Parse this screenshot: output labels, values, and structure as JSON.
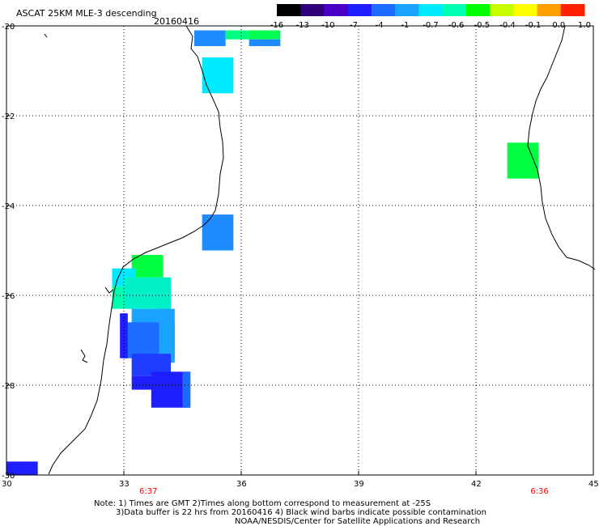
{
  "header": {
    "title": "ASCAT 25KM MLE-3 descending",
    "date": "20160416"
  },
  "colorbar": {
    "labels": [
      "-16",
      "-13",
      "-10",
      "-7",
      "-4",
      "-1",
      "-0.7",
      "-0.6",
      "-0.5",
      "-0.4",
      "-0.1",
      "0.0",
      "1.0"
    ],
    "colors": [
      "#000000",
      "#30007a",
      "#4b00c8",
      "#1e1eff",
      "#1e6bff",
      "#1aa4ff",
      "#00eaff",
      "#00ffb0",
      "#00ff00",
      "#c8ff00",
      "#ffff00",
      "#ffa000",
      "#ff2000"
    ]
  },
  "map": {
    "lon_range": [
      30,
      45
    ],
    "lat_range": [
      -30,
      -20
    ],
    "x_ticks": [
      "30",
      "33",
      "36",
      "39",
      "42",
      "45"
    ],
    "y_ticks": [
      "-20",
      "-22",
      "-24",
      "-26",
      "-28",
      "-30"
    ],
    "pass_times": [
      {
        "lon": 33.6,
        "label": "6:37"
      },
      {
        "lon": 43.6,
        "label": "6:36"
      }
    ],
    "cells": [
      {
        "lon": 34.8,
        "lat": -20.1,
        "w": 0.8,
        "h": 0.35,
        "color": "#1e8bff"
      },
      {
        "lon": 35.6,
        "lat": -20.1,
        "w": 0.6,
        "h": 0.2,
        "color": "#00ff80"
      },
      {
        "lon": 36.2,
        "lat": -20.1,
        "w": 0.8,
        "h": 0.2,
        "color": "#00ff50"
      },
      {
        "lon": 36.2,
        "lat": -20.3,
        "w": 0.8,
        "h": 0.15,
        "color": "#1e8bff"
      },
      {
        "lon": 35.0,
        "lat": -20.7,
        "w": 0.8,
        "h": 0.8,
        "color": "#00eaff"
      },
      {
        "lon": 42.8,
        "lat": -22.6,
        "w": 0.8,
        "h": 0.8,
        "color": "#00ff40"
      },
      {
        "lon": 35.0,
        "lat": -24.2,
        "w": 0.8,
        "h": 0.8,
        "color": "#1e8bff"
      },
      {
        "lon": 33.2,
        "lat": -25.1,
        "w": 0.8,
        "h": 0.5,
        "color": "#00ff40"
      },
      {
        "lon": 32.7,
        "lat": -25.4,
        "w": 0.6,
        "h": 0.4,
        "color": "#00eaff"
      },
      {
        "lon": 33.0,
        "lat": -25.6,
        "w": 1.2,
        "h": 0.7,
        "color": "#00f0c8"
      },
      {
        "lon": 32.7,
        "lat": -25.8,
        "w": 0.3,
        "h": 0.5,
        "color": "#00ffb0"
      },
      {
        "lon": 33.2,
        "lat": -26.3,
        "w": 1.0,
        "h": 0.5,
        "color": "#1aa4ff"
      },
      {
        "lon": 33.0,
        "lat": -26.6,
        "w": 1.3,
        "h": 0.8,
        "color": "#1e6bff"
      },
      {
        "lon": 33.9,
        "lat": -26.3,
        "w": 0.4,
        "h": 1.2,
        "color": "#1aa4ff"
      },
      {
        "lon": 32.9,
        "lat": -26.4,
        "w": 0.2,
        "h": 1.0,
        "color": "#1e1eff"
      },
      {
        "lon": 33.2,
        "lat": -27.3,
        "w": 1.0,
        "h": 0.5,
        "color": "#1e3cff"
      },
      {
        "lon": 33.2,
        "lat": -27.8,
        "w": 0.8,
        "h": 0.3,
        "color": "#1e1eff"
      },
      {
        "lon": 33.7,
        "lat": -27.7,
        "w": 1.0,
        "h": 0.8,
        "color": "#1e1eff"
      },
      {
        "lon": 34.5,
        "lat": -27.7,
        "w": 0.2,
        "h": 0.8,
        "color": "#1e6bff"
      },
      {
        "lon": 30.0,
        "lat": -29.7,
        "w": 0.8,
        "h": 0.3,
        "color": "#1e1eff"
      }
    ]
  },
  "notes": {
    "line1": "Note: 1) Times are GMT 2)Times along bottom correspond to measurement at -25S",
    "line2": "3)Data buffer is 22 hrs from 20160416 4) Black wind barbs indicate possible contamination",
    "line3": "NOAA/NESDIS/Center for Satellite Applications and Research"
  }
}
